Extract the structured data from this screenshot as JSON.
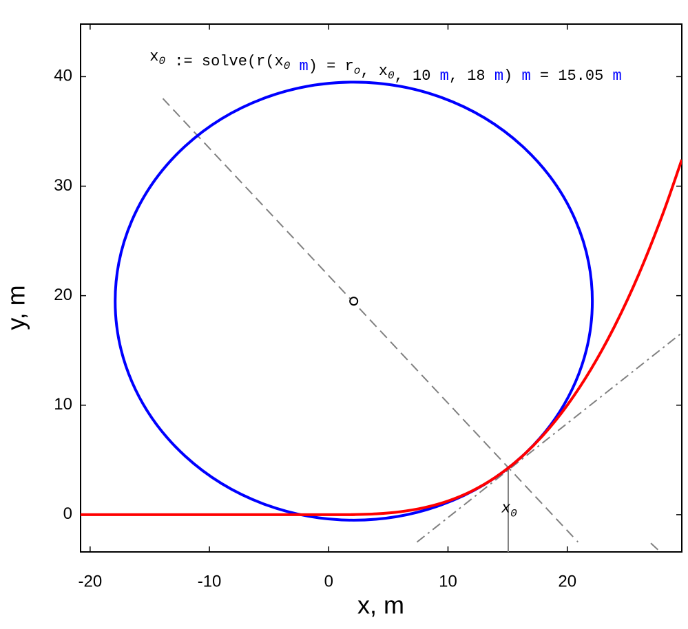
{
  "chart_data": {
    "type": "curve",
    "formula": [
      {
        "text": "x",
        "sub": "0",
        "color": "#000000"
      },
      {
        "text": " := solve(r(",
        "color": "#000000"
      },
      {
        "text": "x",
        "sub": "0",
        "color": "#000000"
      },
      {
        "text": " m",
        "color": "#0000ff"
      },
      {
        "text": ") = r",
        "sub": "o",
        "color": "#000000"
      },
      {
        "text": ", x",
        "sub": "0",
        "color": "#000000"
      },
      {
        "text": ", 10 ",
        "color": "#000000"
      },
      {
        "text": "m",
        "color": "#0000ff"
      },
      {
        "text": ", 18 ",
        "color": "#000000"
      },
      {
        "text": "m",
        "color": "#0000ff"
      },
      {
        "text": ") ",
        "color": "#000000"
      },
      {
        "text": "m",
        "color": "#0000ff"
      },
      {
        "text": " = 15.05 ",
        "color": "#000000"
      },
      {
        "text": "m",
        "color": "#0000ff"
      }
    ],
    "x_label": "x, m",
    "y_label": "y, m",
    "xlim": [
      -20.8,
      29.6
    ],
    "ylim": [
      -3.4,
      44.8
    ],
    "xticks": [
      -20,
      -10,
      0,
      10,
      20
    ],
    "yticks": [
      0,
      10,
      20,
      30,
      40
    ],
    "series": [
      {
        "color": "#ff0000",
        "x": [
          -20.8,
          0,
          2,
          4,
          6,
          8,
          10,
          12,
          14,
          16,
          18,
          20,
          22,
          24,
          26,
          28,
          29.6
        ],
        "y": [
          0,
          0,
          0.01,
          0.08,
          0.27,
          0.64,
          1.25,
          2.16,
          3.43,
          5.12,
          7.29,
          10,
          13.31,
          17.28,
          21.97,
          27.44,
          32.42
        ]
      }
    ],
    "circle": {
      "center_x": 2.1,
      "center_y": 19.5,
      "radius": 20,
      "color": "#0000ff"
    },
    "lines": [
      {
        "x": [
          -13.9,
          20.9
        ],
        "y": [
          38,
          -2.5
        ],
        "style": "dashed",
        "color": "#808080"
      },
      {
        "x": [
          27,
          27.8
        ],
        "y": [
          -2.6,
          -3.4
        ],
        "style": "dashed",
        "color": "#808080"
      },
      {
        "x": [
          7.4,
          29.6
        ],
        "y": [
          -2.5,
          16.6
        ],
        "style": "dashdot",
        "color": "#808080"
      },
      {
        "x": [
          15.05,
          15.05
        ],
        "y": [
          4.26,
          -3.4
        ],
        "style": "solid",
        "color": "#808080"
      }
    ],
    "x0_label": {
      "text": "x",
      "sub": "0",
      "x": 15.05,
      "y": 0.2
    }
  }
}
